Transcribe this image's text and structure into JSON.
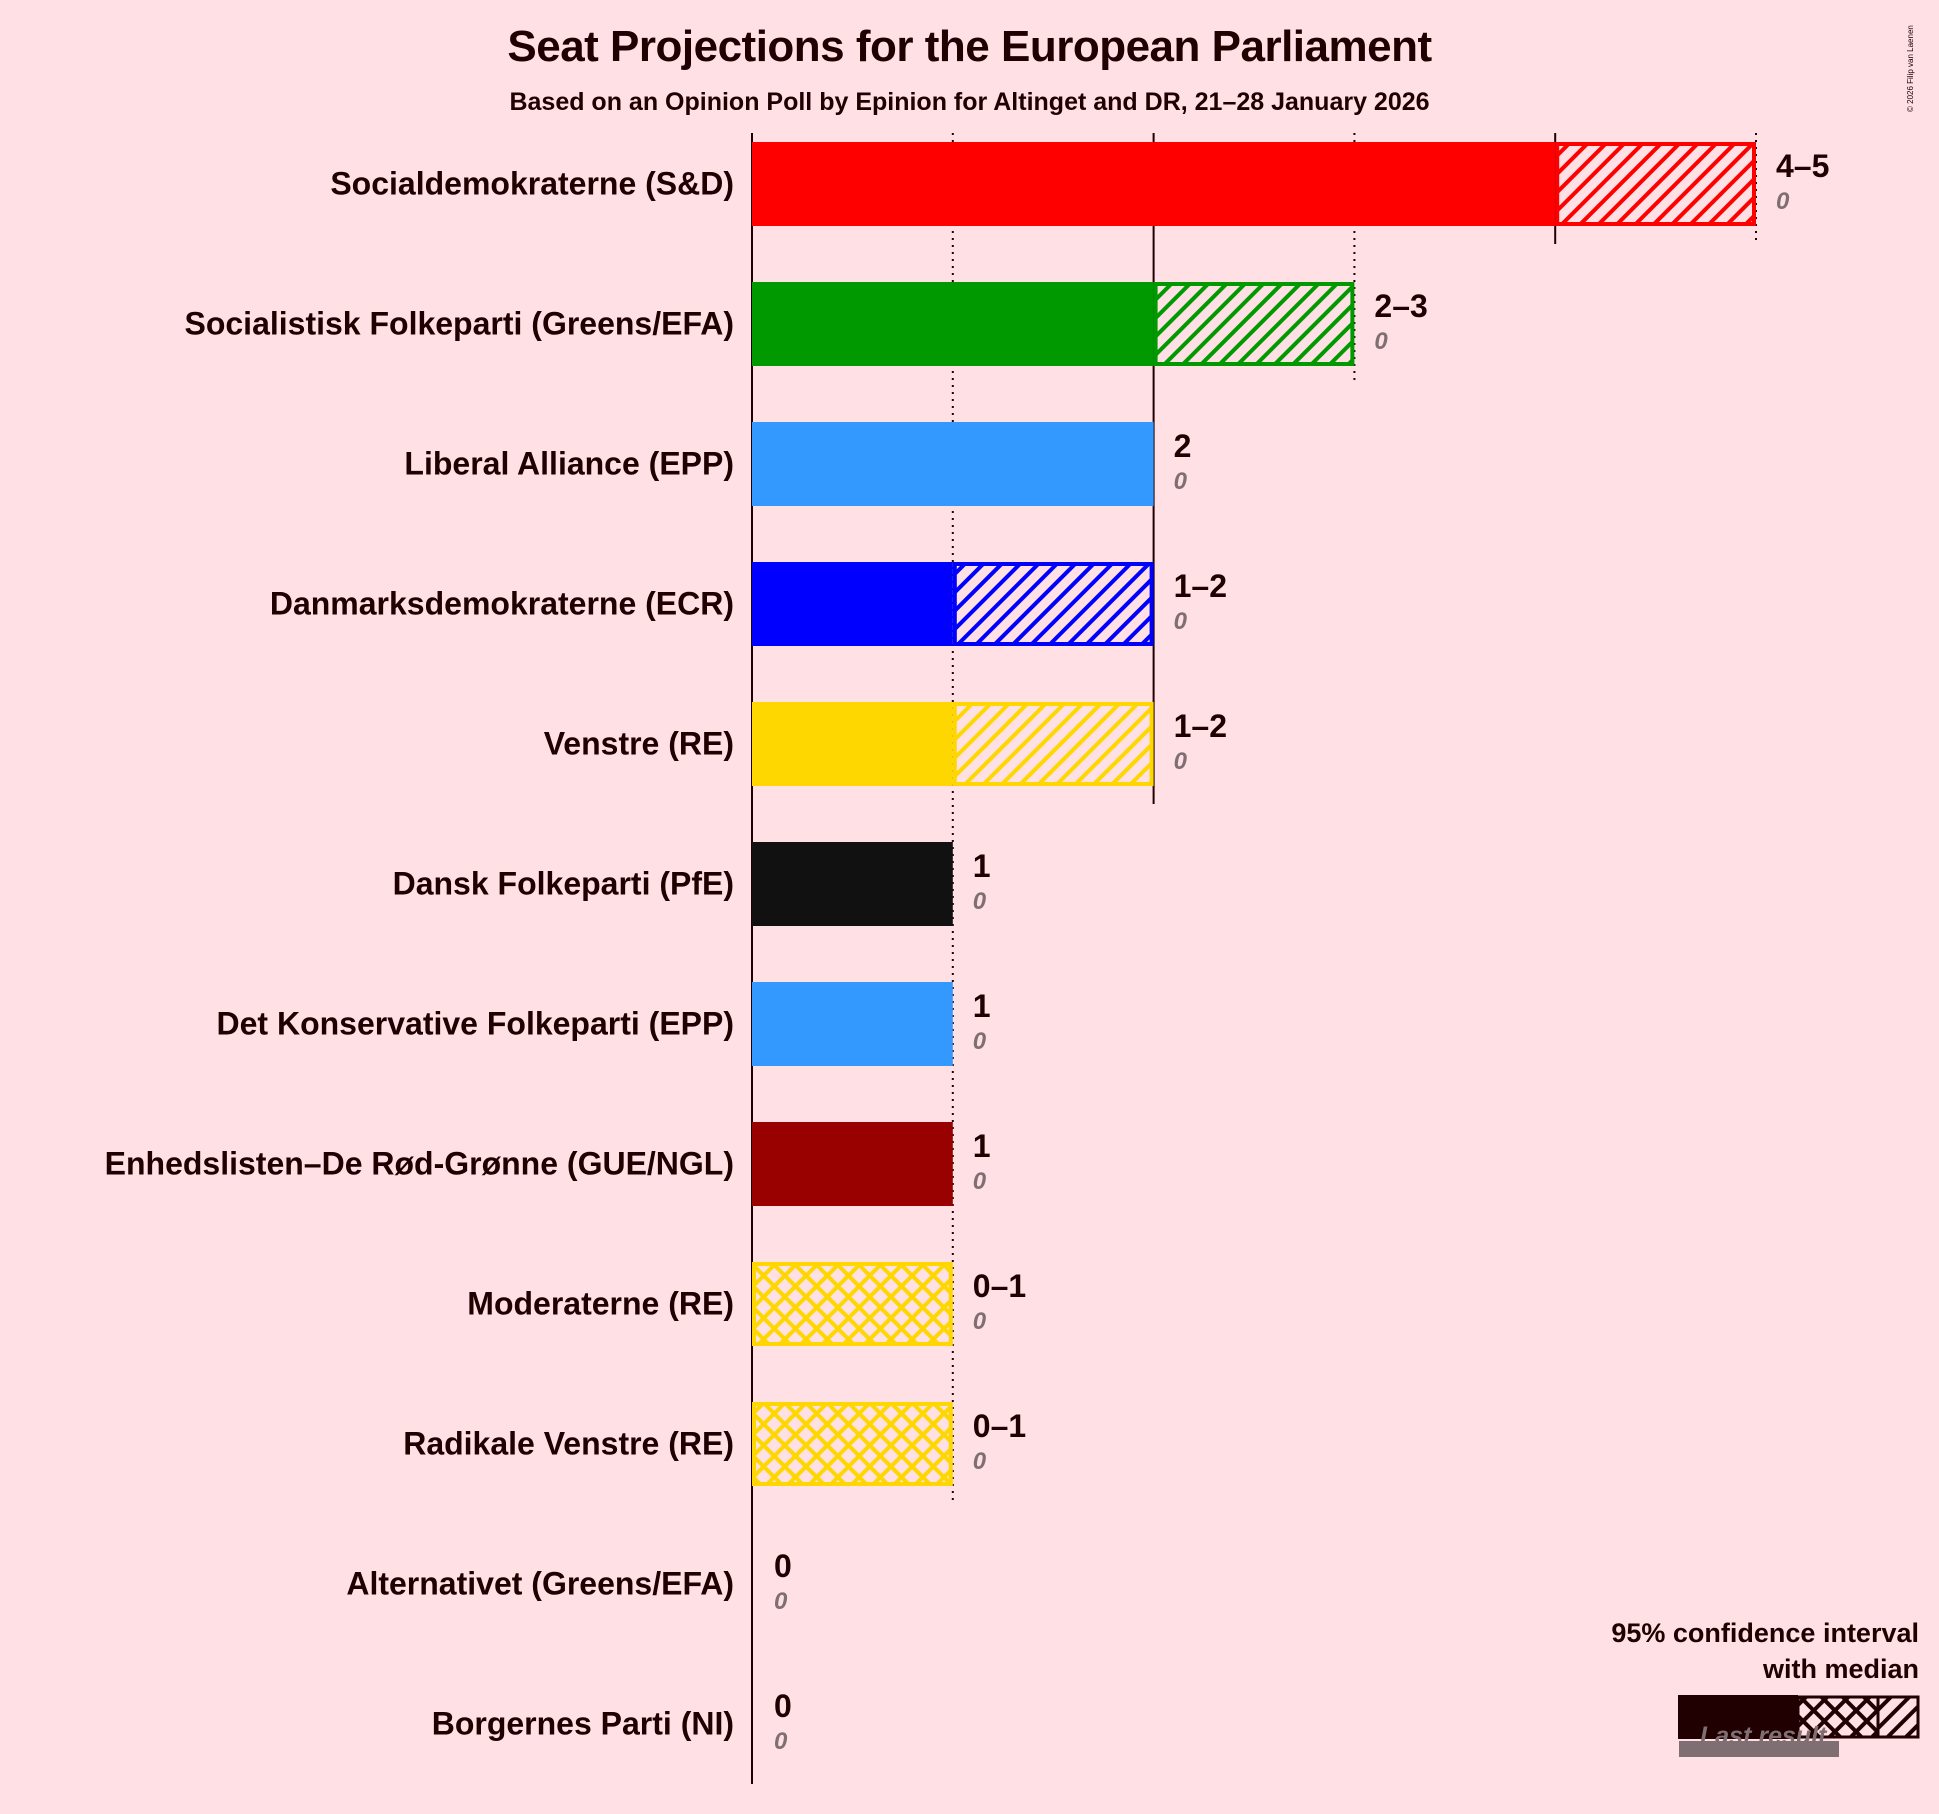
{
  "title": "Seat Projections for the European Parliament",
  "subtitle": "Based on an Opinion Poll by Epinion for Altinget and DR, 21–28 January 2026",
  "copyright": "© 2026 Filip van Laenen",
  "colors": {
    "background": "#ffe0e5",
    "text": "#200000",
    "last_result": "#7f6f72"
  },
  "legend": {
    "title_line1": "95% confidence interval",
    "title_line2": "with median",
    "last_result": "Last result"
  },
  "chart_data": {
    "type": "bar",
    "orientation": "horizontal",
    "title": "Seat Projections for the European Parliament",
    "subtitle": "Based on an Opinion Poll by Epinion for Altinget and DR, 21–28 January 2026",
    "xlabel": "",
    "ylabel": "",
    "xlim": [
      0,
      5
    ],
    "gridlines": {
      "solid": [
        0,
        2,
        4
      ],
      "dotted": [
        1,
        3,
        5
      ]
    },
    "legend_position": "bottom-right",
    "categories": [
      "Socialdemokraterne (S&D)",
      "Socialistisk Folkeparti (Greens/EFA)",
      "Liberal Alliance (EPP)",
      "Danmarksdemokraterne (ECR)",
      "Venstre (RE)",
      "Dansk Folkeparti (PfE)",
      "Det Konservative Folkeparti (EPP)",
      "Enhedslisten–De Rød-Grønne (GUE/NGL)",
      "Moderaterne (RE)",
      "Radikale Venstre (RE)",
      "Alternativet (Greens/EFA)",
      "Borgernes Parti (NI)"
    ],
    "parties": [
      {
        "name": "Socialdemokraterne (S&D)",
        "low": 4,
        "median": 4,
        "high": 5,
        "range_label": "4–5",
        "last_result": 0,
        "color": "#ff0000"
      },
      {
        "name": "Socialistisk Folkeparti (Greens/EFA)",
        "low": 2,
        "median": 2,
        "high": 3,
        "range_label": "2–3",
        "last_result": 0,
        "color": "#009900"
      },
      {
        "name": "Liberal Alliance (EPP)",
        "low": 2,
        "median": 2,
        "high": 2,
        "range_label": "2",
        "last_result": 0,
        "color": "#3399ff"
      },
      {
        "name": "Danmarksdemokraterne (ECR)",
        "low": 1,
        "median": 1,
        "high": 2,
        "range_label": "1–2",
        "last_result": 0,
        "color": "#0000ff"
      },
      {
        "name": "Venstre (RE)",
        "low": 1,
        "median": 1,
        "high": 2,
        "range_label": "1–2",
        "last_result": 0,
        "color": "#ffd700"
      },
      {
        "name": "Dansk Folkeparti (PfE)",
        "low": 1,
        "median": 1,
        "high": 1,
        "range_label": "1",
        "last_result": 0,
        "color": "#111111"
      },
      {
        "name": "Det Konservative Folkeparti (EPP)",
        "low": 1,
        "median": 1,
        "high": 1,
        "range_label": "1",
        "last_result": 0,
        "color": "#3399ff"
      },
      {
        "name": "Enhedslisten–De Rød-Grønne (GUE/NGL)",
        "low": 1,
        "median": 1,
        "high": 1,
        "range_label": "1",
        "last_result": 0,
        "color": "#990000"
      },
      {
        "name": "Moderaterne (RE)",
        "low": 0,
        "median": 0,
        "high": 1,
        "range_label": "0–1",
        "last_result": 0,
        "color": "#ffd700"
      },
      {
        "name": "Radikale Venstre (RE)",
        "low": 0,
        "median": 0,
        "high": 1,
        "range_label": "0–1",
        "last_result": 0,
        "color": "#ffd700"
      },
      {
        "name": "Alternativet (Greens/EFA)",
        "low": 0,
        "median": 0,
        "high": 0,
        "range_label": "0",
        "last_result": 0,
        "color": "#009900"
      },
      {
        "name": "Borgernes Parti (NI)",
        "low": 0,
        "median": 0,
        "high": 0,
        "range_label": "0",
        "last_result": 0,
        "color": "#666666"
      }
    ]
  }
}
